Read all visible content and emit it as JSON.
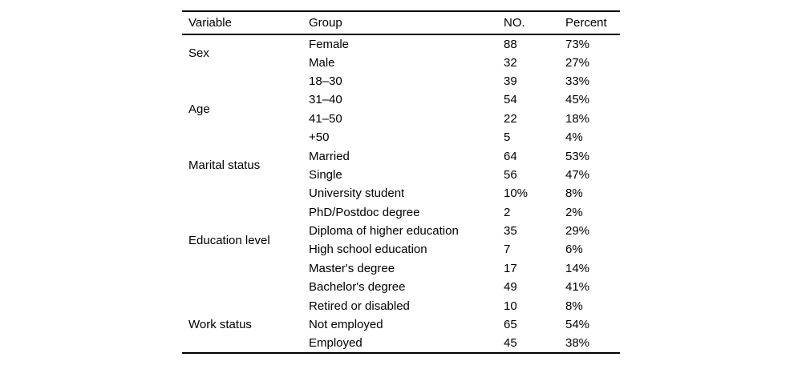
{
  "page": {
    "background_color": "#ffffff",
    "text_color": "#000000",
    "rule_color": "#000000"
  },
  "table": {
    "columns": [
      "Variable",
      "Group",
      "NO.",
      "Percent"
    ],
    "groups": [
      {
        "variable": "Sex",
        "rows": [
          {
            "group": "Female",
            "no": "88",
            "percent": "73%"
          },
          {
            "group": "Male",
            "no": "32",
            "percent": "27%"
          }
        ]
      },
      {
        "variable": "Age",
        "rows": [
          {
            "group": "18–30",
            "no": "39",
            "percent": "33%"
          },
          {
            "group": "31–40",
            "no": "54",
            "percent": "45%"
          },
          {
            "group": "41–50",
            "no": "22",
            "percent": "18%"
          },
          {
            "group": "+50",
            "no": "5",
            "percent": "4%"
          }
        ]
      },
      {
        "variable": "Marital status",
        "rows": [
          {
            "group": "Married",
            "no": "64",
            "percent": "53%"
          },
          {
            "group": "Single",
            "no": "56",
            "percent": "47%"
          }
        ]
      },
      {
        "variable": "Education level",
        "rows": [
          {
            "group": "University student",
            "no": "10%",
            "percent": "8%"
          },
          {
            "group": "PhD/Postdoc degree",
            "no": "2",
            "percent": "2%"
          },
          {
            "group": "Diploma of higher education",
            "no": "35",
            "percent": "29%"
          },
          {
            "group": "High school education",
            "no": "7",
            "percent": "6%"
          },
          {
            "group": "Master's degree",
            "no": "17",
            "percent": "14%"
          },
          {
            "group": "Bachelor's degree",
            "no": "49",
            "percent": "41%"
          }
        ]
      },
      {
        "variable": "Work status",
        "rows": [
          {
            "group": "Retired or disabled",
            "no": "10",
            "percent": "8%"
          },
          {
            "group": "Not employed",
            "no": "65",
            "percent": "54%"
          },
          {
            "group": "Employed",
            "no": "45",
            "percent": "38%"
          }
        ]
      }
    ]
  }
}
